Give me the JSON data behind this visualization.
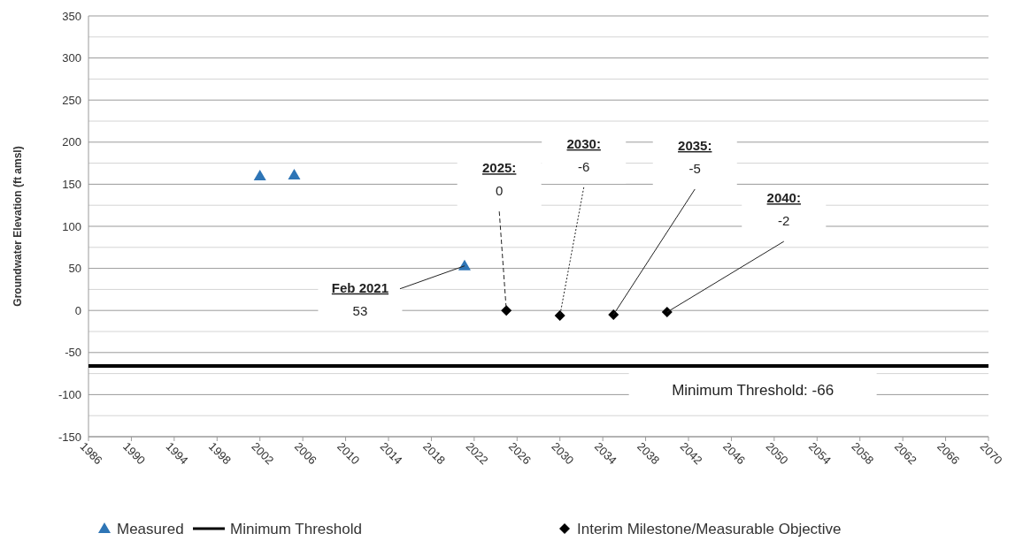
{
  "chart_data": {
    "type": "scatter",
    "ylabel": "Groundwater Elevation (ft amsl)",
    "xlim": [
      1986,
      2070
    ],
    "xticks": [
      1986,
      1990,
      1994,
      1998,
      2002,
      2006,
      2010,
      2014,
      2018,
      2022,
      2026,
      2030,
      2034,
      2038,
      2042,
      2046,
      2050,
      2054,
      2058,
      2062,
      2066,
      2070
    ],
    "ylim": [
      -150,
      350
    ],
    "yticks": [
      -150,
      {
        "value": -125,
        "label": null
      },
      -100,
      {
        "value": -75,
        "label": null
      },
      -50,
      {
        "value": -25,
        "label": null
      },
      0,
      {
        "value": 25,
        "label": null
      },
      50,
      {
        "value": 75,
        "label": null
      },
      100,
      {
        "value": 125,
        "label": null
      },
      150,
      {
        "value": 175,
        "label": null
      },
      200,
      {
        "value": 225,
        "label": null
      },
      250,
      {
        "value": 275,
        "label": null
      },
      300,
      {
        "value": 325,
        "label": null
      },
      350
    ],
    "grid": "y",
    "legend": "bottom",
    "series": [
      {
        "name": "Measured",
        "marker": "triangle",
        "color": "#2e75b6",
        "x": [
          2002,
          2005.2,
          2021.1
        ],
        "values": [
          160,
          161,
          53
        ]
      },
      {
        "name": "Minimum Threshold",
        "type": "line",
        "marker": "none",
        "line_style": "solid",
        "color": "#000000",
        "x": [
          1986,
          2070
        ],
        "values": [
          -66,
          -66
        ]
      },
      {
        "name": "Interim Milestone/Measurable Objective",
        "marker": "diamond",
        "color": "#000000",
        "x": [
          2025,
          2030,
          2035,
          2040
        ],
        "values": [
          0,
          -6,
          -5,
          -2
        ]
      }
    ],
    "annotations": [
      {
        "text": "Feb 2021\n53",
        "x": 2021.1,
        "y": 53
      },
      {
        "text": "2025:\n0",
        "x": 2025,
        "y": 0
      },
      {
        "text": "2030:\n-6",
        "x": 2030,
        "y": -6
      },
      {
        "text": "2035:\n-5",
        "x": 2035,
        "y": -5
      },
      {
        "text": "2040:\n-2",
        "x": 2040,
        "y": -2
      },
      {
        "text": "Minimum Threshold: -66",
        "x": 2048,
        "y": -66
      }
    ]
  }
}
